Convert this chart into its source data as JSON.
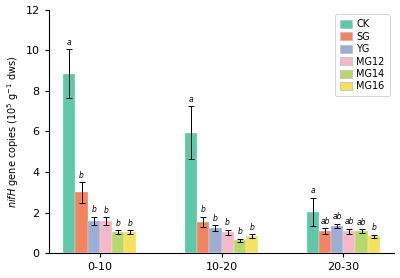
{
  "groups": [
    "0-10",
    "10-20",
    "20-30"
  ],
  "series": [
    "CK",
    "SG",
    "YG",
    "MG12",
    "MG14",
    "MG16"
  ],
  "colors": [
    "#5DC9A8",
    "#F4845F",
    "#9DAED4",
    "#F4B8C8",
    "#B8D96A",
    "#F5E060"
  ],
  "bar_values": [
    [
      8.85,
      3.0,
      1.6,
      1.6,
      1.05,
      1.05
    ],
    [
      5.95,
      1.55,
      1.25,
      1.05,
      0.65,
      0.85
    ],
    [
      2.05,
      1.1,
      1.35,
      1.1,
      1.1,
      0.85
    ]
  ],
  "error_values": [
    [
      1.2,
      0.5,
      0.2,
      0.18,
      0.1,
      0.1
    ],
    [
      1.3,
      0.25,
      0.15,
      0.12,
      0.08,
      0.1
    ],
    [
      0.7,
      0.15,
      0.12,
      0.12,
      0.1,
      0.08
    ]
  ],
  "sig_labels": [
    [
      "a",
      "b",
      "b",
      "b",
      "b",
      "b"
    ],
    [
      "a",
      "b",
      "b",
      "b",
      "b",
      "b"
    ],
    [
      "a",
      "ab",
      "ab",
      "ab",
      "ab",
      "b"
    ]
  ],
  "ylim": [
    0,
    12
  ],
  "yticks": [
    0,
    2,
    4,
    6,
    8,
    10,
    12
  ],
  "bar_width": 0.1,
  "group_centers": [
    0.0,
    1.0,
    2.0
  ]
}
